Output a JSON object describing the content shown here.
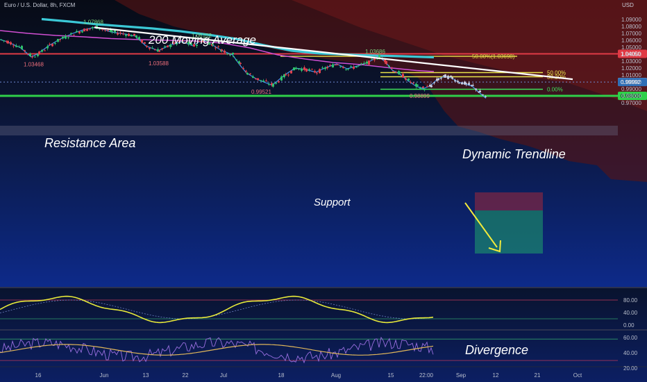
{
  "header": {
    "symbol": "Euro / U.S. Dollar, 8h, FXCM",
    "currency": "USD"
  },
  "annotations": {
    "ma_label": "200 Moving Average",
    "resistance_label": "Resistance Area",
    "trendline_label": "Dynamic Trendline",
    "support_label": "Support",
    "divergence_label": "Divergence"
  },
  "swing_labels": [
    {
      "text": "1.07868",
      "price": 1.07868,
      "color": "#7fd67f"
    },
    {
      "text": "1.06102",
      "price": 1.06102,
      "color": "#7fd67f"
    },
    {
      "text": "1.03468",
      "price": 1.03468,
      "color": "#ef6f7c"
    },
    {
      "text": "1.03588",
      "price": 1.03588,
      "color": "#ef6f7c"
    },
    {
      "text": "1.03686",
      "price": 1.03686,
      "color": "#7fd67f"
    },
    {
      "text": "0.99521",
      "price": 0.99521,
      "color": "#ef6f7c"
    },
    {
      "text": "0.98899",
      "price": 0.98899,
      "color": "#ef6f7c"
    }
  ],
  "fib": {
    "upper": {
      "text": "50.00%(1.03698)",
      "price": 1.03698
    },
    "lower": [
      {
        "text": "50.00%",
        "price": 1.0135
      },
      {
        "text": "38.20%",
        "price": 1.0075
      },
      {
        "text": "0.00%",
        "price": 0.9895
      }
    ]
  },
  "price_tags": [
    {
      "text": "1.04050",
      "value": 1.0405,
      "bg": "#e03a45",
      "fg": "#ffffff"
    },
    {
      "text": "1.00000",
      "value": 1.0,
      "bg": "#ffffff",
      "fg": "#111111"
    },
    {
      "text": "0.99992",
      "value": 0.99992,
      "bg": "#2f6fb6",
      "fg": "#ffffff"
    },
    {
      "text": "0.98000",
      "value": 0.98,
      "bg": "#2fd04a",
      "fg": "#0b1022"
    }
  ],
  "chart_data": {
    "type": "line",
    "title": "Euro / U.S. Dollar, 8h, FXCM",
    "xlabel": "",
    "ylabel": "USD",
    "ylim": [
      0.9665,
      1.0968
    ],
    "y_ticks": [
      "1.09000",
      "1.08000",
      "1.07000",
      "1.06000",
      "1.05000",
      "1.04000",
      "1.03000",
      "1.02000",
      "1.01000",
      "1.00000",
      "0.99000",
      "0.98000",
      "0.97000"
    ],
    "x_ticks": [
      "16",
      "Jun",
      "13",
      "22",
      "Jul",
      "18",
      "Aug",
      "15",
      "22:00",
      "Sep",
      "12",
      "21",
      "Oct"
    ],
    "grid": false,
    "series": [
      {
        "name": "",
        "color": "#4aa3ff",
        "x": [
          0,
          10,
          30,
          45,
          55,
          70,
          85,
          105,
          120,
          138,
          160,
          180,
          195,
          210,
          228,
          245,
          262,
          278,
          292,
          305,
          318,
          335,
          345,
          355,
          370,
          392,
          410,
          425,
          440,
          455,
          470,
          485,
          500,
          515,
          530,
          545,
          555,
          565,
          575,
          590,
          600,
          610,
          620,
          630,
          640,
          650,
          660,
          670,
          680,
          690,
          700
        ],
        "values": [
          1.061,
          1.058,
          1.049,
          1.036,
          1.041,
          1.052,
          1.061,
          1.07,
          1.075,
          1.079,
          1.072,
          1.069,
          1.066,
          1.052,
          1.045,
          1.053,
          1.058,
          1.052,
          1.061,
          1.054,
          1.046,
          1.039,
          1.025,
          1.013,
          1.004,
          0.9952,
          1.01,
          1.02,
          1.018,
          1.014,
          1.021,
          1.026,
          1.019,
          1.023,
          1.028,
          1.0369,
          1.029,
          1.017,
          1.012,
          1.0,
          0.9935,
          0.9905,
          0.9945,
          1.004,
          1.008,
          1.006,
          1.0,
          0.997,
          0.994,
          0.985,
          0.9765
        ]
      },
      {
        "name": "",
        "color": "#3bc8d6",
        "x": [
          60,
          100,
          140,
          180,
          220,
          260,
          300,
          340,
          380,
          420,
          460,
          500,
          540,
          580,
          625
        ],
        "values": [
          1.0905,
          1.087,
          1.083,
          1.08,
          1.077,
          1.073,
          1.068,
          1.062,
          1.053,
          1.045,
          1.041,
          1.0395,
          1.038,
          1.037,
          1.0355
        ]
      },
      {
        "name": "",
        "color": "#d14fd3",
        "x": [
          0,
          40,
          80,
          120,
          160,
          200,
          240,
          280,
          320,
          360,
          400,
          440,
          480,
          520,
          560,
          600,
          625
        ],
        "values": [
          1.074,
          1.07,
          1.067,
          1.065,
          1.0625,
          1.061,
          1.06,
          1.059,
          1.056,
          1.049,
          1.039,
          1.033,
          1.028,
          1.025,
          1.0205,
          1.0165,
          1.015
        ]
      }
    ],
    "oscillator_1": {
      "ylim": [
        0,
        100
      ],
      "ticks": [
        "80.00",
        "40.00",
        "0.00"
      ]
    },
    "oscillator_2": {
      "ylim": [
        20,
        70
      ],
      "ticks": [
        "60.00",
        "40.00",
        "20.00"
      ]
    }
  }
}
